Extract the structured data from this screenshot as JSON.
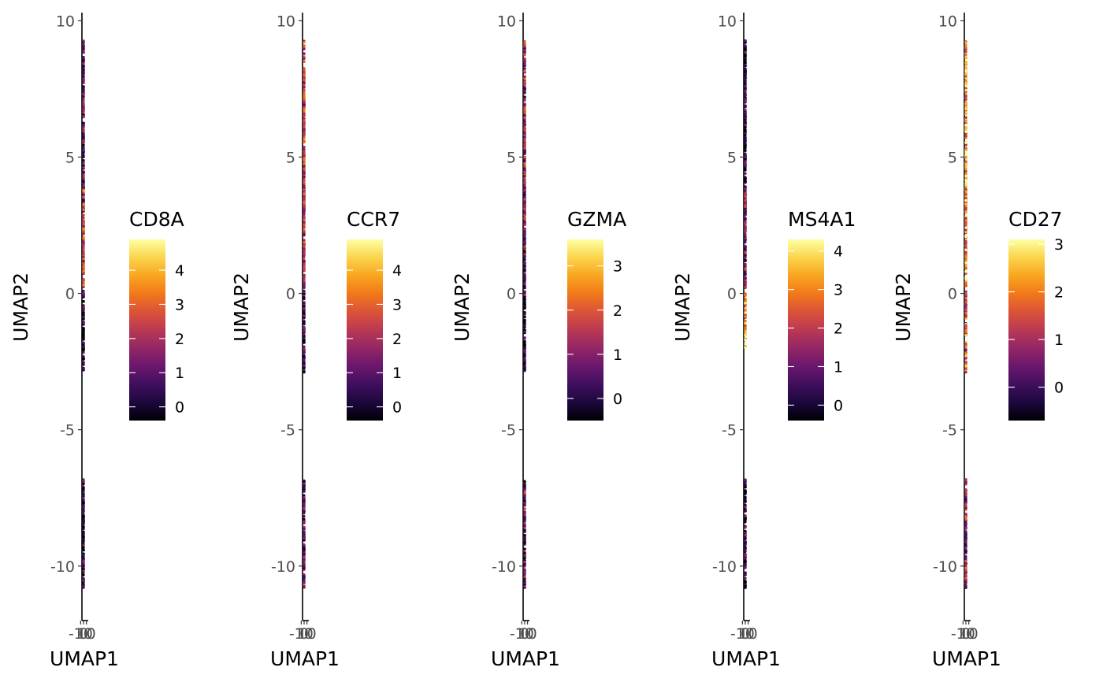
{
  "chart_data": [
    {
      "type": "scatter",
      "title": "",
      "xlabel": "UMAP1",
      "ylabel": "UMAP2",
      "xlim": [
        -11,
        11
      ],
      "ylim": [
        -12,
        10.3
      ],
      "x_ticks": [
        "-10",
        "0",
        "10"
      ],
      "y_ticks": [
        "-10",
        "-5",
        "0",
        "5",
        "10"
      ],
      "color_scale": "inferno",
      "legend": {
        "title": "CD8A",
        "position": "right",
        "min": -0.4,
        "max": 4.9,
        "ticks": [
          0,
          1,
          2,
          3,
          4
        ]
      },
      "clusters": [
        {
          "y_range": [
            3.0,
            9.3
          ],
          "x_range": [
            -0.2,
            0.3
          ],
          "mean_expression": 0.9
        },
        {
          "y_range": [
            0.2,
            3.9
          ],
          "x_range": [
            -0.3,
            0.4
          ],
          "mean_expression": 2.6
        },
        {
          "y_range": [
            -2.9,
            0.1
          ],
          "x_range": [
            -0.1,
            0.2
          ],
          "mean_expression": 0.3
        },
        {
          "y_range": [
            -10.8,
            -6.8
          ],
          "x_range": [
            -0.4,
            0.4
          ],
          "mean_expression": 0.5
        }
      ]
    },
    {
      "type": "scatter",
      "title": "",
      "xlabel": "UMAP1",
      "ylabel": "UMAP2",
      "xlim": [
        -11,
        11
      ],
      "ylim": [
        -12,
        10.3
      ],
      "x_ticks": [
        "-10",
        "0",
        "10"
      ],
      "y_ticks": [
        "-10",
        "-5",
        "0",
        "5",
        "10"
      ],
      "color_scale": "inferno",
      "legend": {
        "title": "CCR7",
        "position": "right",
        "min": -0.4,
        "max": 4.9,
        "ticks": [
          0,
          1,
          2,
          3,
          4
        ]
      },
      "clusters": [
        {
          "y_range": [
            3.0,
            9.3
          ],
          "x_range": [
            -0.2,
            0.3
          ],
          "mean_expression": 2.2
        },
        {
          "y_range": [
            0.2,
            3.9
          ],
          "x_range": [
            -0.3,
            0.4
          ],
          "mean_expression": 2.3
        },
        {
          "y_range": [
            -2.9,
            0.1
          ],
          "x_range": [
            -0.1,
            0.2
          ],
          "mean_expression": 0.6
        },
        {
          "y_range": [
            -10.8,
            -6.8
          ],
          "x_range": [
            -0.4,
            0.4
          ],
          "mean_expression": 1.0
        }
      ]
    },
    {
      "type": "scatter",
      "title": "",
      "xlabel": "UMAP1",
      "ylabel": "UMAP2",
      "xlim": [
        -11,
        11
      ],
      "ylim": [
        -12,
        10.3
      ],
      "x_ticks": [
        "-10",
        "0",
        "10"
      ],
      "y_ticks": [
        "-10",
        "-5",
        "0",
        "5",
        "10"
      ],
      "color_scale": "inferno",
      "legend": {
        "title": "GZMA",
        "position": "right",
        "min": -0.5,
        "max": 3.6,
        "ticks": [
          0,
          1,
          2,
          3
        ]
      },
      "clusters": [
        {
          "y_range": [
            3.0,
            9.3
          ],
          "x_range": [
            -0.2,
            0.3
          ],
          "mean_expression": 1.1
        },
        {
          "y_range": [
            0.2,
            3.9
          ],
          "x_range": [
            -0.3,
            0.4
          ],
          "mean_expression": 0.8
        },
        {
          "y_range": [
            -2.9,
            0.1
          ],
          "x_range": [
            -0.1,
            0.2
          ],
          "mean_expression": 0.1
        },
        {
          "y_range": [
            -10.8,
            -6.8
          ],
          "x_range": [
            -0.4,
            0.4
          ],
          "mean_expression": 0.5
        }
      ]
    },
    {
      "type": "scatter",
      "title": "",
      "xlabel": "UMAP1",
      "ylabel": "UMAP2",
      "xlim": [
        -11,
        11
      ],
      "ylim": [
        -12,
        10.3
      ],
      "x_ticks": [
        "-10",
        "0",
        "10"
      ],
      "y_ticks": [
        "-10",
        "-5",
        "0",
        "5",
        "10"
      ],
      "color_scale": "inferno",
      "legend": {
        "title": "MS4A1",
        "position": "right",
        "min": -0.4,
        "max": 4.3,
        "ticks": [
          0,
          1,
          2,
          3,
          4
        ]
      },
      "clusters": [
        {
          "y_range": [
            3.0,
            9.3
          ],
          "x_range": [
            -0.2,
            0.3
          ],
          "mean_expression": 0.3
        },
        {
          "y_range": [
            0.2,
            3.9
          ],
          "x_range": [
            -0.3,
            0.4
          ],
          "mean_expression": 1.2
        },
        {
          "y_range": [
            -2.0,
            0.0
          ],
          "x_range": [
            -0.1,
            0.2
          ],
          "mean_expression": 3.3
        },
        {
          "y_range": [
            -10.8,
            -6.8
          ],
          "x_range": [
            -0.4,
            0.4
          ],
          "mean_expression": 0.4
        }
      ]
    },
    {
      "type": "scatter",
      "title": "",
      "xlabel": "UMAP1",
      "ylabel": "UMAP2",
      "xlim": [
        -11,
        11
      ],
      "ylim": [
        -12,
        10.3
      ],
      "x_ticks": [
        "-10",
        "0",
        "10"
      ],
      "y_ticks": [
        "-10",
        "-5",
        "0",
        "5",
        "10"
      ],
      "color_scale": "inferno",
      "legend": {
        "title": "CD27",
        "position": "right",
        "min": -0.7,
        "max": 3.1,
        "ticks": [
          0,
          1,
          2,
          3
        ]
      },
      "clusters": [
        {
          "y_range": [
            3.0,
            9.3
          ],
          "x_range": [
            -0.2,
            0.3
          ],
          "mean_expression": 2.3
        },
        {
          "y_range": [
            0.2,
            3.9
          ],
          "x_range": [
            -0.3,
            0.4
          ],
          "mean_expression": 2.2
        },
        {
          "y_range": [
            -2.9,
            0.1
          ],
          "x_range": [
            -0.1,
            0.2
          ],
          "mean_expression": 1.6
        },
        {
          "y_range": [
            -10.8,
            -6.8
          ],
          "x_range": [
            -0.4,
            0.4
          ],
          "mean_expression": 0.9
        }
      ]
    }
  ]
}
